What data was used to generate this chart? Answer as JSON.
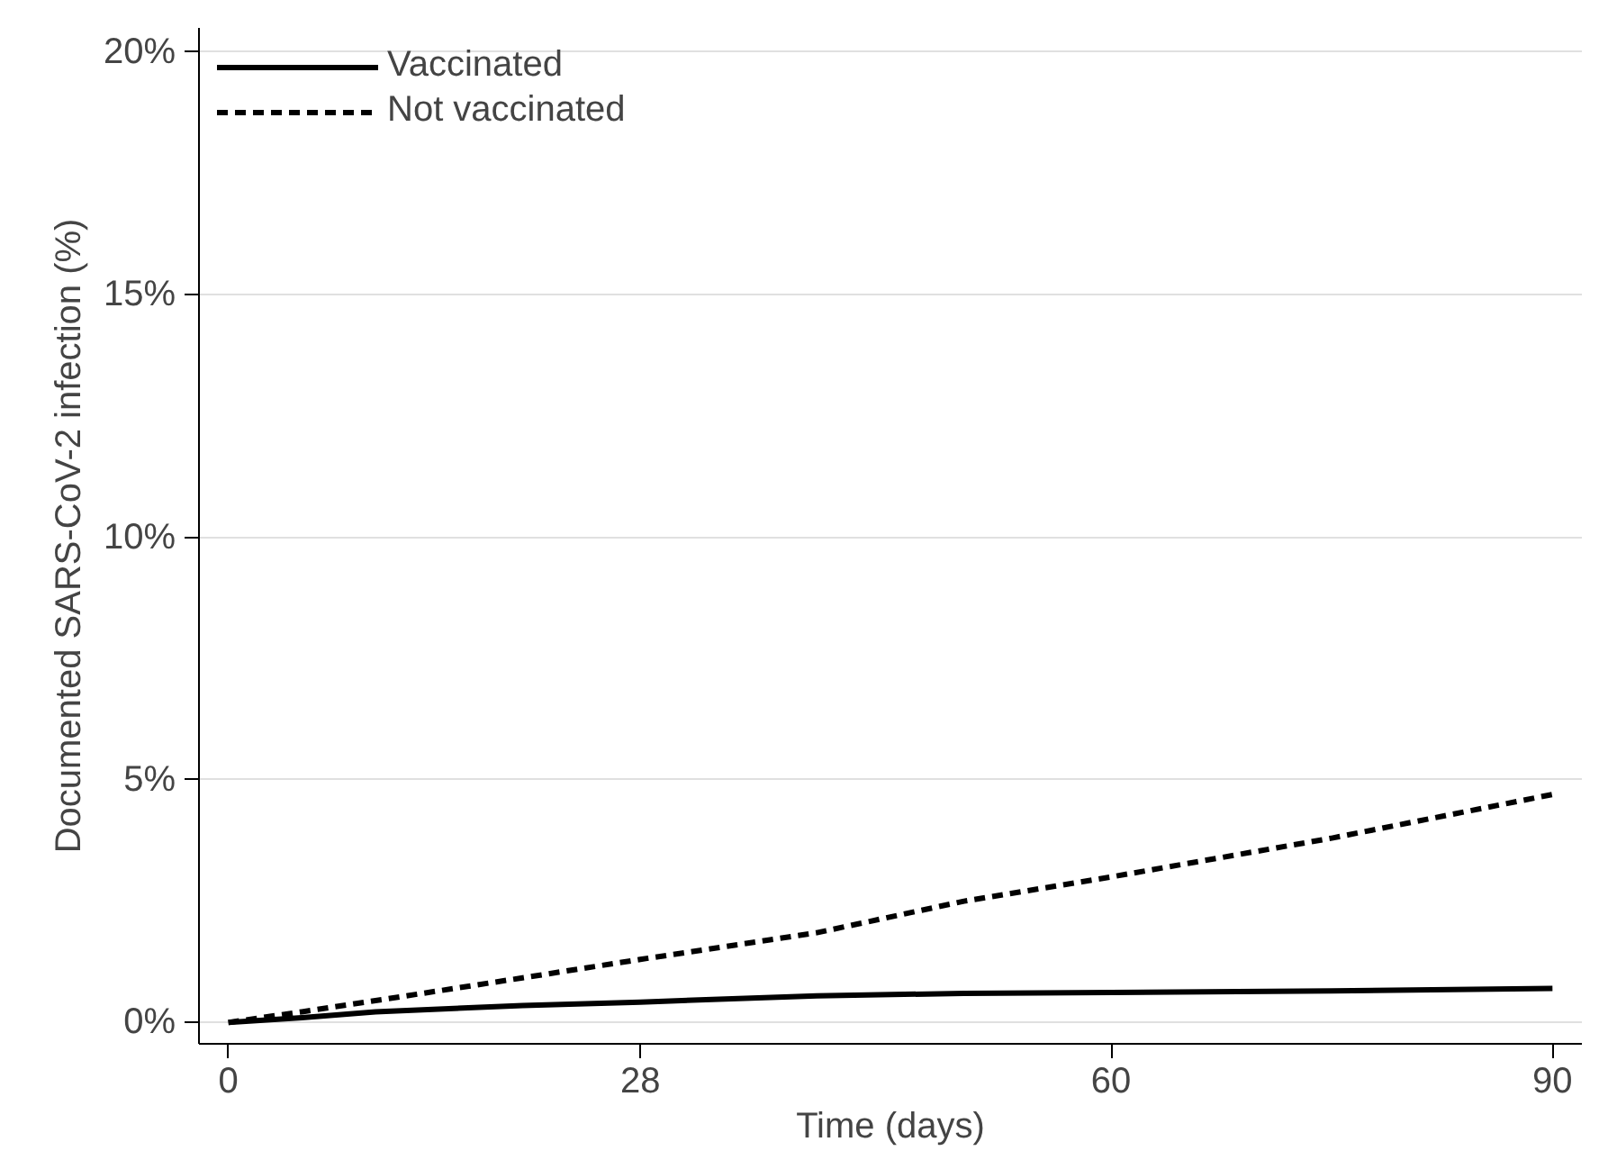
{
  "chart_data": {
    "type": "line",
    "xlabel": "Time (days)",
    "ylabel": "Documented SARS-CoV-2 infection (%)",
    "x": [
      0,
      5,
      10,
      20,
      28,
      40,
      50,
      60,
      75,
      90
    ],
    "series": [
      {
        "name": "Vaccinated",
        "color": "#000000",
        "line_style": "solid",
        "values": [
          0,
          0.1,
          0.22,
          0.35,
          0.42,
          0.55,
          0.6,
          0.62,
          0.65,
          0.7
        ]
      },
      {
        "name": "Not vaccinated",
        "color": "#000000",
        "line_style": "dashed",
        "values": [
          0,
          0.22,
          0.45,
          0.92,
          1.3,
          1.85,
          2.5,
          3.0,
          3.8,
          4.7
        ]
      }
    ],
    "xlim": [
      -2,
      92
    ],
    "ylim": [
      -0.44,
      20.5
    ],
    "xticks": [
      0,
      28,
      60,
      90
    ],
    "yticks": [
      {
        "value": 0,
        "label": "0%"
      },
      {
        "value": 5,
        "label": "5%"
      },
      {
        "value": 10,
        "label": "10%"
      },
      {
        "value": 15,
        "label": "15%"
      },
      {
        "value": 20,
        "label": "20%"
      }
    ],
    "grid": "y",
    "legend": "top left"
  }
}
